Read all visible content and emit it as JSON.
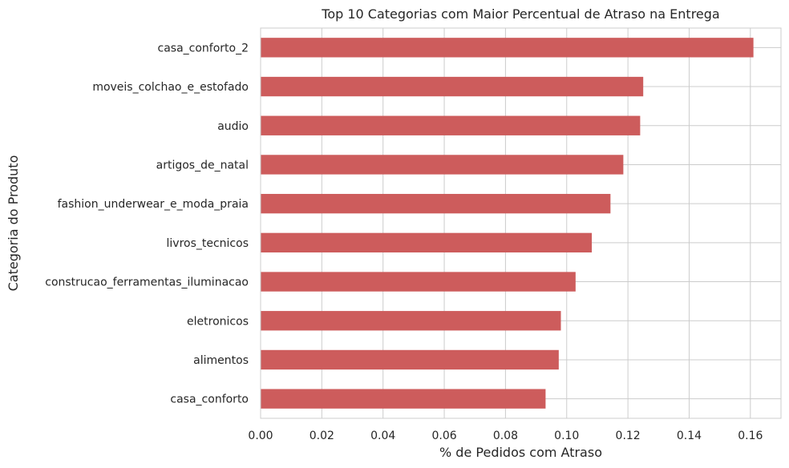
{
  "chart_data": {
    "type": "bar",
    "orientation": "horizontal",
    "title": "Top 10 Categorias com Maior Percentual de Atraso na Entrega",
    "xlabel": "% de Pedidos com Atraso",
    "ylabel": "Categoria do Produto",
    "categories": [
      "casa_conforto_2",
      "moveis_colchao_e_estofado",
      "audio",
      "artigos_de_natal",
      "fashion_underwear_e_moda_praia",
      "livros_tecnicos",
      "construcao_ferramentas_iluminacao",
      "eletronicos",
      "alimentos",
      "casa_conforto"
    ],
    "values": [
      0.161,
      0.125,
      0.124,
      0.1185,
      0.1143,
      0.1082,
      0.1029,
      0.0981,
      0.0974,
      0.0931
    ],
    "xlim": [
      0,
      0.17
    ],
    "xticks": [
      0.0,
      0.02,
      0.04,
      0.06,
      0.08,
      0.1,
      0.12,
      0.14,
      0.16
    ],
    "xtick_labels": [
      "0.00",
      "0.02",
      "0.04",
      "0.06",
      "0.08",
      "0.10",
      "0.12",
      "0.14",
      "0.16"
    ],
    "grid": true,
    "bar_color": "#cd5c5c",
    "grid_color": "#cccccc"
  }
}
